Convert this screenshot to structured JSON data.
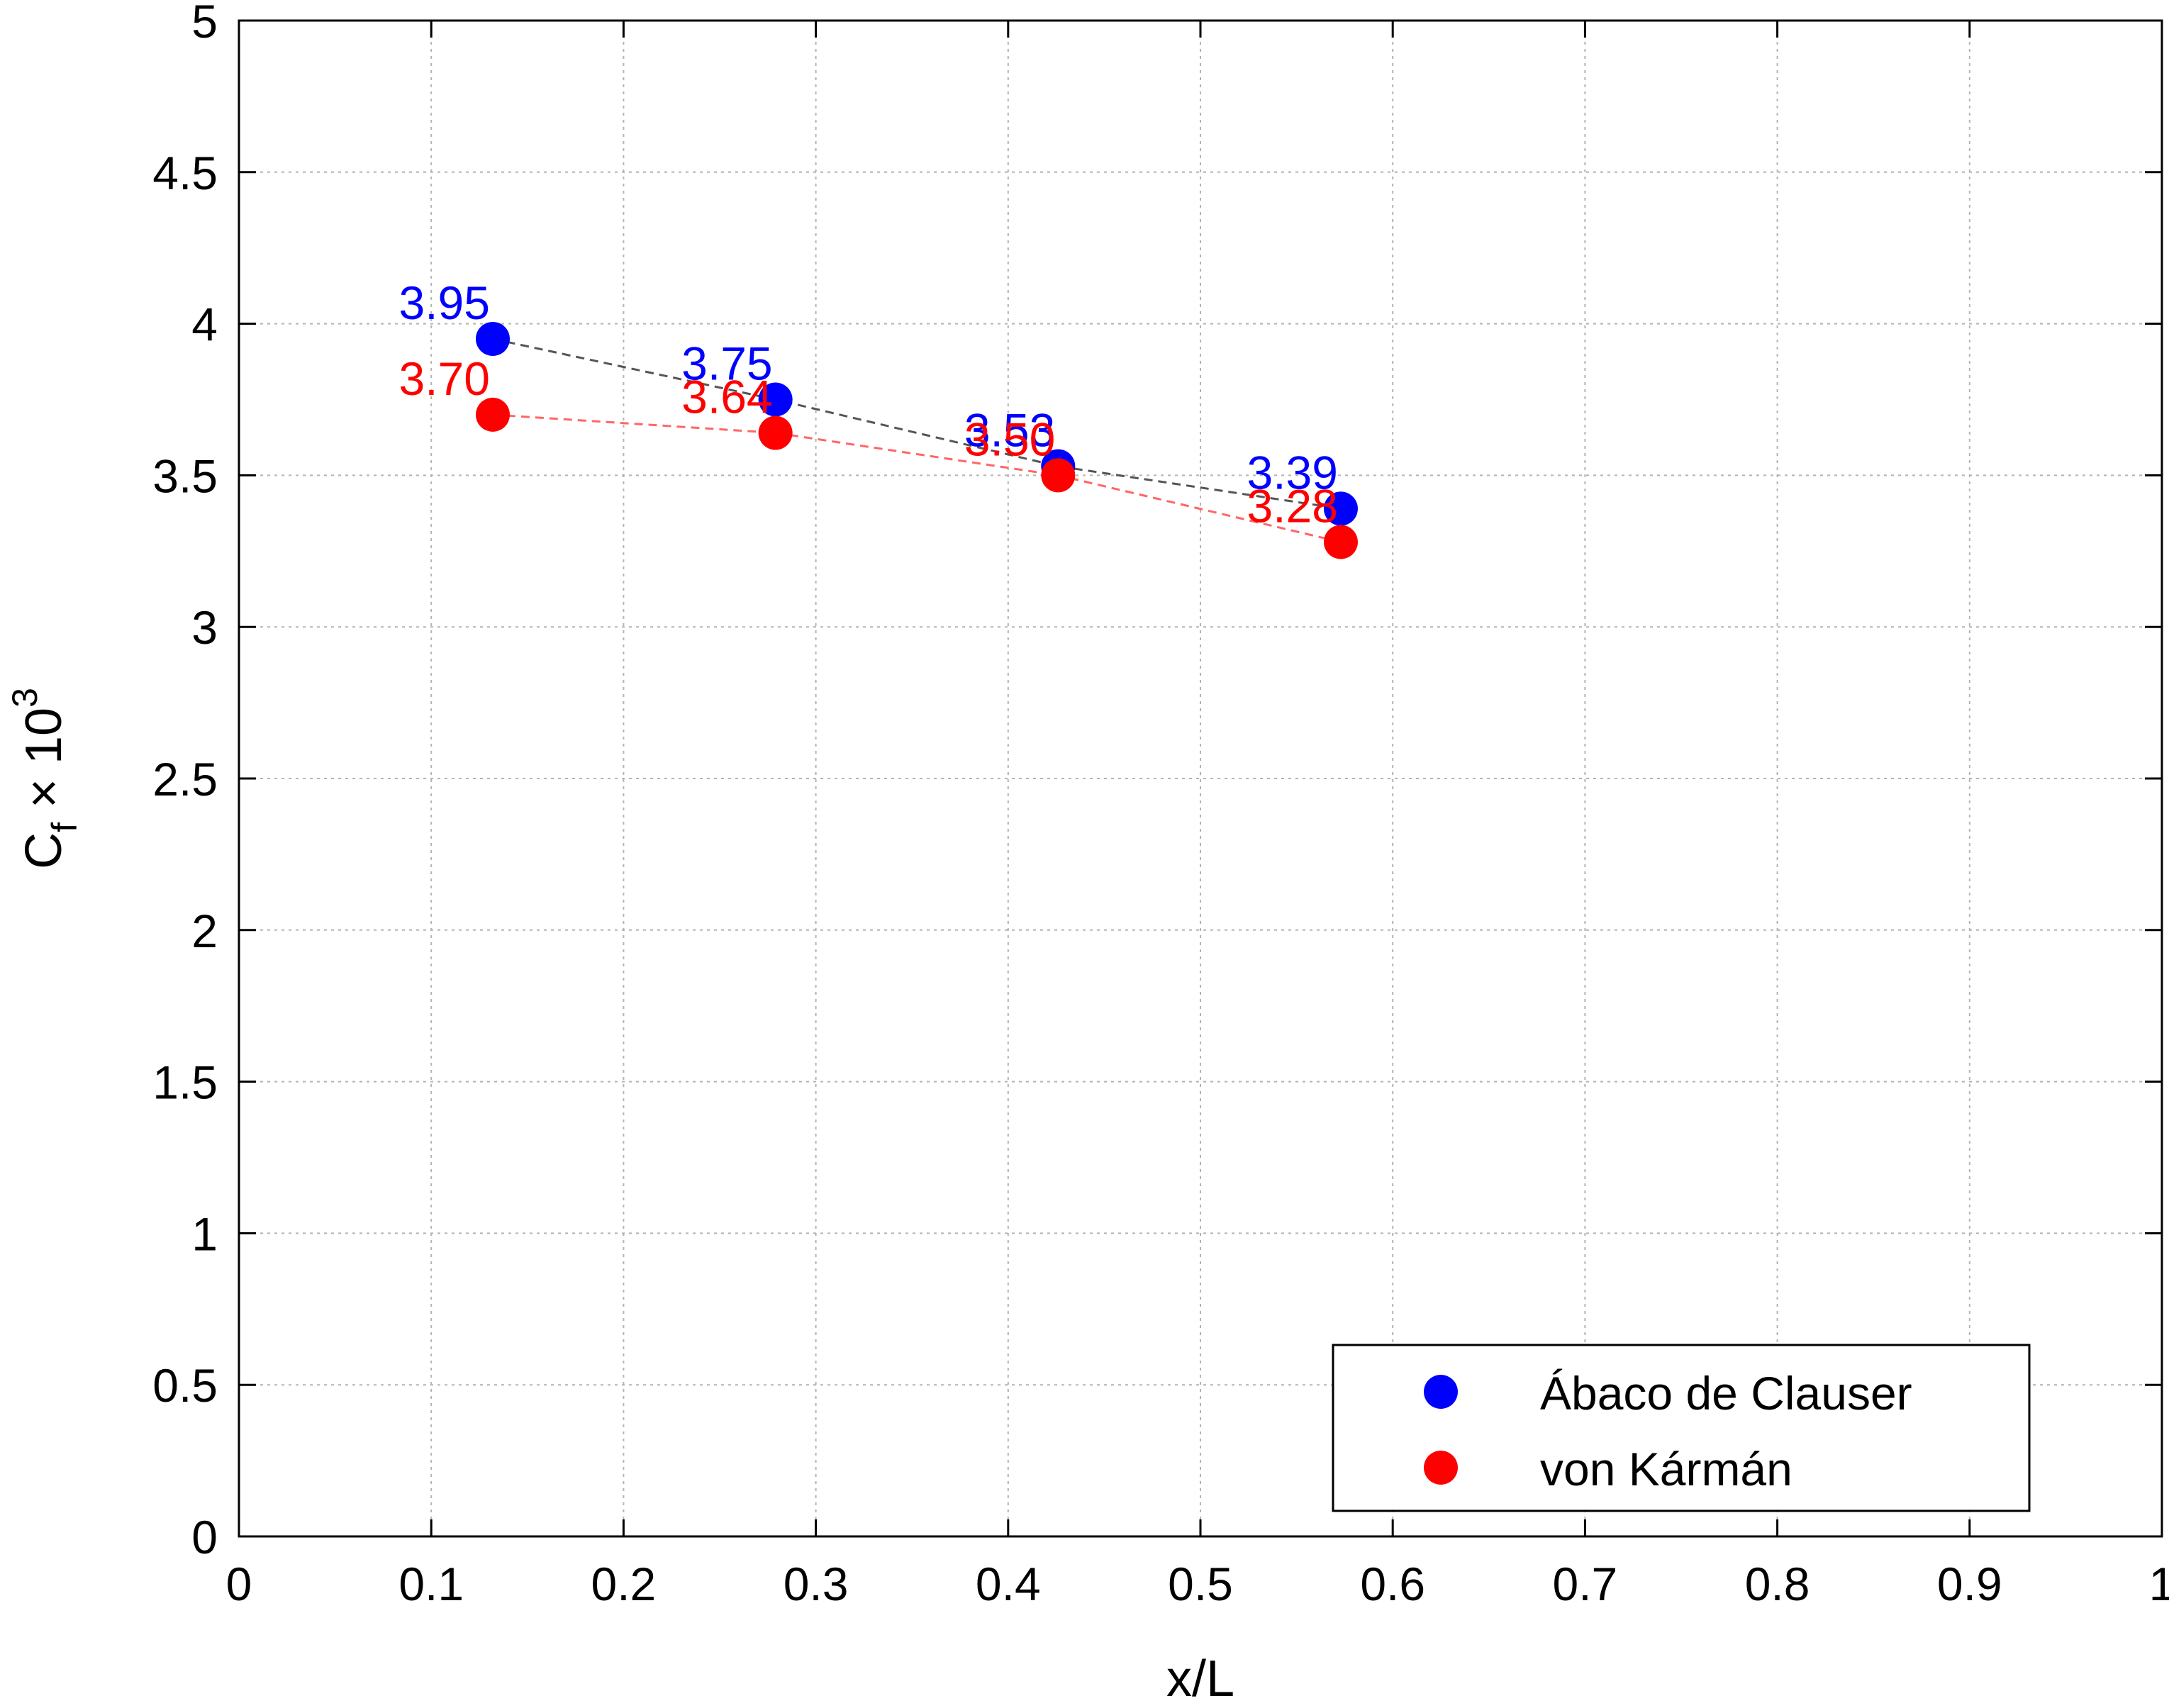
{
  "chart_data": {
    "type": "scatter",
    "xlabel": "x/L",
    "ylabel": {
      "base": "C",
      "subscript": "f",
      "operator": "×",
      "power_base": "10",
      "exponent": "3"
    },
    "xlim": [
      0,
      1
    ],
    "ylim": [
      0,
      5
    ],
    "x_ticks": [
      0,
      0.1,
      0.2,
      0.3,
      0.4,
      0.5,
      0.6,
      0.7,
      0.8,
      0.9,
      1
    ],
    "x_tick_labels": [
      "0",
      "0.1",
      "0.2",
      "0.3",
      "0.4",
      "0.5",
      "0.6",
      "0.7",
      "0.8",
      "0.9",
      "1"
    ],
    "y_ticks": [
      0,
      0.5,
      1,
      1.5,
      2,
      2.5,
      3,
      3.5,
      4,
      4.5,
      5
    ],
    "y_tick_labels": [
      "0",
      "0.5",
      "1",
      "1.5",
      "2",
      "2.5",
      "3",
      "3.5",
      "4",
      "4.5",
      "5"
    ],
    "grid": true,
    "legend_position": "bottom-right",
    "series": [
      {
        "name": "Ábaco de Clauser",
        "color": "#0000ff",
        "line_color": "#555555",
        "line_style": "dashed",
        "x": [
          0.132,
          0.279,
          0.426,
          0.573
        ],
        "y": [
          3.95,
          3.75,
          3.53,
          3.39
        ],
        "labels": [
          "3.95",
          "3.75",
          "3.53",
          "3.39"
        ]
      },
      {
        "name": "von Kármán",
        "color": "#ff0000",
        "line_color": "#ff6666",
        "line_style": "dashed",
        "x": [
          0.132,
          0.279,
          0.426,
          0.573
        ],
        "y": [
          3.7,
          3.64,
          3.5,
          3.28
        ],
        "labels": [
          "3.70",
          "3.64",
          "3.50",
          "3.28"
        ]
      }
    ]
  }
}
